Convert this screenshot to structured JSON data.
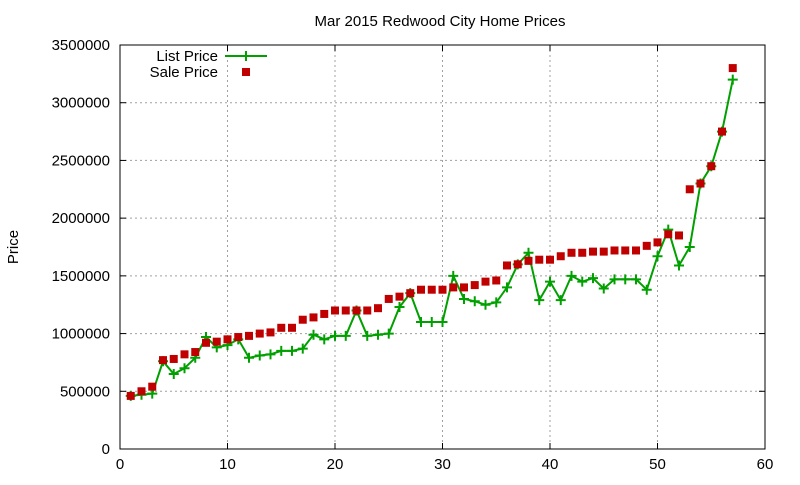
{
  "chart_data": {
    "type": "line",
    "title": "Mar 2015 Redwood City Home Prices",
    "xlabel": "",
    "ylabel": "Price",
    "xlim": [
      0,
      60
    ],
    "ylim": [
      0,
      3500000
    ],
    "x_ticks": [
      0,
      10,
      20,
      30,
      40,
      50,
      60
    ],
    "y_ticks": [
      0,
      500000,
      1000000,
      1500000,
      2000000,
      2500000,
      3000000,
      3500000
    ],
    "grid": true,
    "legend_position": "top-left",
    "series": [
      {
        "name": "List Price",
        "style": "line-plus",
        "color": "#00a000",
        "x": [
          1,
          2,
          3,
          4,
          5,
          6,
          7,
          8,
          9,
          10,
          11,
          12,
          13,
          14,
          15,
          16,
          17,
          18,
          19,
          20,
          21,
          22,
          23,
          24,
          25,
          26,
          27,
          28,
          29,
          30,
          31,
          32,
          33,
          34,
          35,
          36,
          37,
          38,
          39,
          40,
          41,
          42,
          43,
          44,
          45,
          46,
          47,
          48,
          49,
          50,
          51,
          52,
          53,
          54,
          55,
          56,
          57
        ],
        "y": [
          460000,
          470000,
          480000,
          760000,
          650000,
          700000,
          790000,
          970000,
          880000,
          900000,
          950000,
          790000,
          810000,
          820000,
          850000,
          850000,
          870000,
          990000,
          950000,
          980000,
          980000,
          1200000,
          980000,
          990000,
          1000000,
          1230000,
          1350000,
          1100000,
          1100000,
          1100000,
          1500000,
          1300000,
          1280000,
          1250000,
          1270000,
          1400000,
          1600000,
          1700000,
          1290000,
          1450000,
          1290000,
          1500000,
          1450000,
          1480000,
          1390000,
          1470000,
          1470000,
          1470000,
          1380000,
          1670000,
          1900000,
          1590000,
          1750000,
          2300000,
          2450000,
          2750000,
          3200000
        ]
      },
      {
        "name": "Sale Price",
        "style": "square",
        "color": "#c00000",
        "x": [
          1,
          2,
          3,
          4,
          5,
          6,
          7,
          8,
          9,
          10,
          11,
          12,
          13,
          14,
          15,
          16,
          17,
          18,
          19,
          20,
          21,
          22,
          23,
          24,
          25,
          26,
          27,
          28,
          29,
          30,
          31,
          32,
          33,
          34,
          35,
          36,
          37,
          38,
          39,
          40,
          41,
          42,
          43,
          44,
          45,
          46,
          47,
          48,
          49,
          50,
          51,
          52,
          53,
          54,
          55,
          56,
          57
        ],
        "y": [
          460000,
          500000,
          540000,
          770000,
          780000,
          820000,
          840000,
          920000,
          930000,
          950000,
          970000,
          980000,
          1000000,
          1010000,
          1050000,
          1050000,
          1120000,
          1140000,
          1170000,
          1200000,
          1200000,
          1200000,
          1200000,
          1220000,
          1300000,
          1320000,
          1350000,
          1380000,
          1380000,
          1380000,
          1400000,
          1400000,
          1420000,
          1450000,
          1460000,
          1590000,
          1600000,
          1630000,
          1640000,
          1640000,
          1670000,
          1700000,
          1700000,
          1710000,
          1710000,
          1720000,
          1720000,
          1720000,
          1760000,
          1790000,
          1860000,
          1850000,
          2250000,
          2300000,
          2450000,
          2750000,
          3300000
        ]
      }
    ]
  }
}
